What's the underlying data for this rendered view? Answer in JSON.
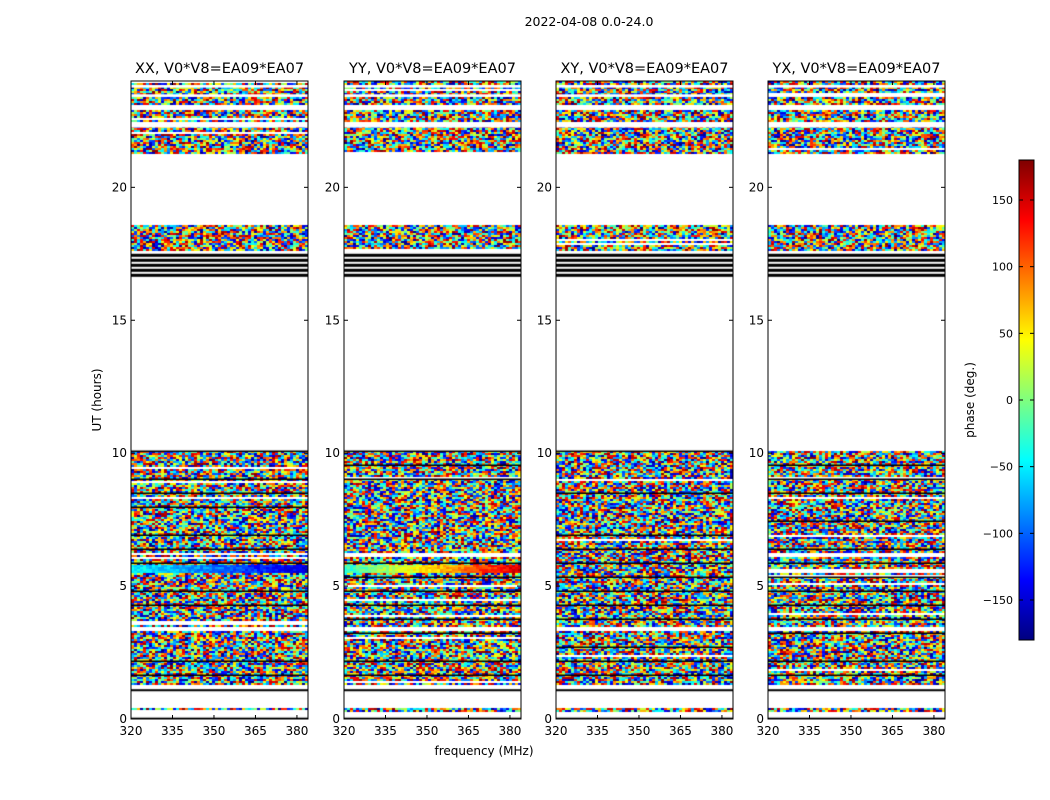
{
  "figure": {
    "suptitle": "2022-04-08 0.0-24.0",
    "xlabel": "frequency (MHz)",
    "ylabel": "UT (hours)",
    "colorbar_label": "phase (deg.)"
  },
  "colorbar": {
    "range": [
      -180,
      180
    ],
    "ticks": [
      150,
      100,
      50,
      0,
      -50,
      -100,
      -150
    ],
    "tick_labels": [
      "150",
      "100",
      "50",
      "0",
      "−50",
      "−100",
      "−150"
    ],
    "colormap": "jet",
    "colors": [
      "#00007f",
      "#0000ff",
      "#007fff",
      "#00ffff",
      "#7fff7f",
      "#ffff00",
      "#ff7f00",
      "#ff0000",
      "#7f0000"
    ]
  },
  "chart_data": {
    "type": "heatmap",
    "panels": [
      {
        "title": "XX, V0*V8=EA09*EA07",
        "polarization": "XX"
      },
      {
        "title": "YY, V0*V8=EA09*EA07",
        "polarization": "YY"
      },
      {
        "title": "XY, V0*V8=EA09*EA07",
        "polarization": "XY"
      },
      {
        "title": "YX, V0*V8=EA09*EA07",
        "polarization": "YX"
      }
    ],
    "xlim": [
      320,
      384
    ],
    "ylim": [
      0,
      24
    ],
    "xticks": [
      320,
      335,
      350,
      365,
      380
    ],
    "xtick_labels": [
      "320",
      "335",
      "350",
      "365",
      "380"
    ],
    "yticks": [
      0,
      5,
      10,
      15,
      20
    ],
    "ytick_labels": [
      "0",
      "5",
      "10",
      "15",
      "20"
    ],
    "value": "phase (deg.)",
    "noise_bands_hours": [
      [
        0.3,
        0.4
      ],
      [
        1.3,
        3.3
      ],
      [
        3.5,
        10.1
      ],
      [
        17.6,
        18.6
      ],
      [
        21.3,
        22.3
      ],
      [
        22.5,
        22.9
      ],
      [
        23.1,
        24.0
      ]
    ],
    "dark_bands_hours": [
      [
        0.0,
        0.05
      ],
      [
        1.05,
        1.12
      ],
      [
        16.6,
        17.5
      ]
    ],
    "coherent_feature": {
      "panels": [
        "XX",
        "YY"
      ],
      "hours": [
        5.5,
        5.8
      ]
    }
  }
}
